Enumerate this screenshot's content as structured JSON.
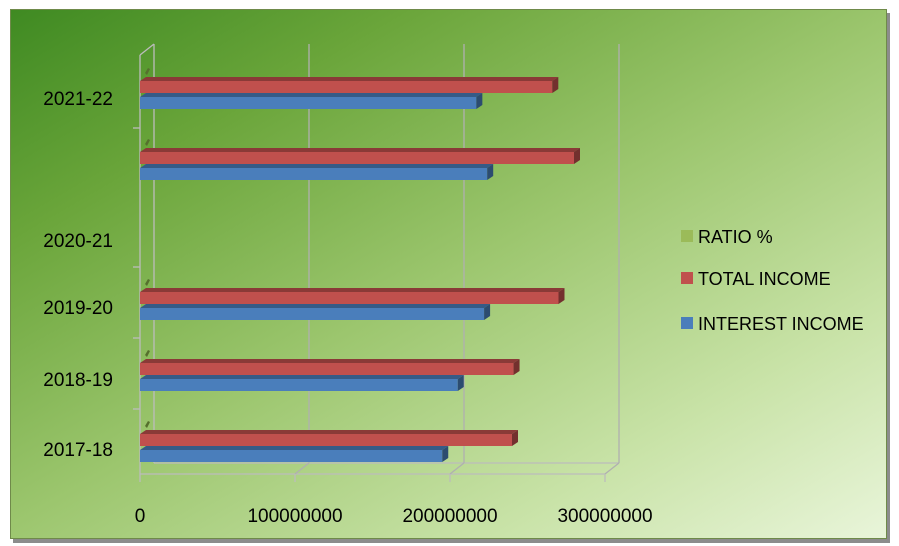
{
  "chart_data": {
    "type": "bar",
    "orientation": "horizontal",
    "style": "3d-clustered",
    "categories": [
      "2017-18",
      "2018-19",
      "2019-20",
      "2020-21",
      "2021-22"
    ],
    "series": [
      {
        "name": "INTEREST INCOME",
        "color": "#4a7ebb",
        "values": [
          195000000,
          205000000,
          222000000,
          224000000,
          217000000
        ]
      },
      {
        "name": "TOTAL INCOME",
        "color": "#c0504d",
        "values": [
          240000000,
          241000000,
          270000000,
          280000000,
          266000000
        ]
      },
      {
        "name": "RATIO %",
        "color": "#9bbb59",
        "values": [
          null,
          null,
          null,
          null,
          null
        ]
      }
    ],
    "x_ticks": [
      "0",
      "100000000",
      "200000000",
      "300000000"
    ],
    "xlim": [
      0,
      300000000
    ],
    "gridlines": true,
    "legend_position": "right",
    "title": "",
    "xlabel": "",
    "ylabel": ""
  }
}
